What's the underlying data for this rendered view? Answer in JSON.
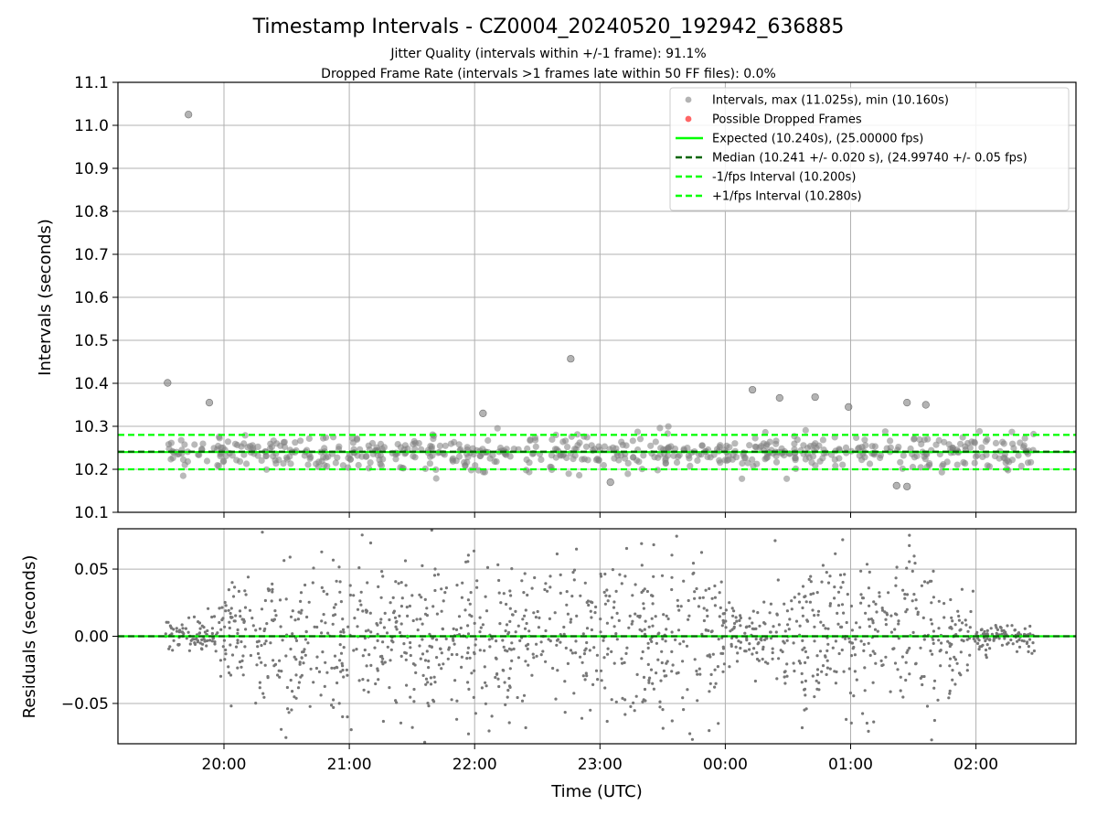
{
  "figure": {
    "title": "Timestamp Intervals - CZ0004_20240520_192942_636885",
    "subtitle_lines": [
      "Jitter Quality (intervals within +/-1 frame): 91.1%",
      "Dropped Frame Rate (intervals >1 frames late within 50 FF files): 0.0%"
    ]
  },
  "colors": {
    "points": "#808080",
    "dropped": "#ff0000",
    "expected": "#00ff00",
    "median": "#006400",
    "interval_bounds": "#00ff00",
    "grid": "#b0b0b0"
  },
  "legend": {
    "placement": "top-right",
    "entries": [
      {
        "label": "Intervals, max (11.025s), min (10.160s)",
        "kind": "marker",
        "color": "#808080"
      },
      {
        "label": "Possible Dropped Frames",
        "kind": "marker",
        "color": "#ff0000"
      },
      {
        "label": "Expected (10.240s), (25.00000 fps)",
        "kind": "solid",
        "color": "#00ff00"
      },
      {
        "label": "Median (10.241 +/- 0.020 s), (24.99740 +/- 0.05 fps)",
        "kind": "dashed",
        "color": "#006400"
      },
      {
        "label": "-1/fps Interval (10.200s)",
        "kind": "dashed",
        "color": "#00ff00"
      },
      {
        "label": "+1/fps Interval (10.280s)",
        "kind": "dashed",
        "color": "#00ff00"
      }
    ]
  },
  "chart_data": [
    {
      "type": "scatter",
      "ylabel": "Intervals (seconds)",
      "xlabel": "",
      "ylim": [
        10.1,
        11.1
      ],
      "yticks": [
        10.1,
        10.2,
        10.3,
        10.4,
        10.5,
        10.6,
        10.7,
        10.8,
        10.9,
        11.0,
        11.1
      ],
      "ytick_labels": [
        "10.1",
        "10.2",
        "10.3",
        "10.4",
        "10.5",
        "10.6",
        "10.7",
        "10.8",
        "10.9",
        "11.0",
        "11.1"
      ],
      "grid": true,
      "x_start_time": "19:30",
      "x_end_time": "02:30",
      "summary": {
        "max": 11.025,
        "min": 10.16,
        "expected": 10.24,
        "median": 10.241,
        "lower": 10.2,
        "upper": 10.28
      },
      "reference_lines": [
        {
          "name": "Expected",
          "y": 10.24,
          "style": "solid"
        },
        {
          "name": "Median",
          "y": 10.241,
          "style": "dashed"
        },
        {
          "name": "-1/fps Interval",
          "y": 10.2,
          "style": "dashed"
        },
        {
          "name": "+1/fps Interval",
          "y": 10.28,
          "style": "dashed"
        }
      ],
      "notable_points": [
        {
          "x": "19:43",
          "y": 11.025
        },
        {
          "x": "19:33",
          "y": 10.401
        },
        {
          "x": "19:53",
          "y": 10.355
        },
        {
          "x": "22:46",
          "y": 10.457
        },
        {
          "x": "00:13",
          "y": 10.385
        },
        {
          "x": "00:26",
          "y": 10.366
        },
        {
          "x": "00:43",
          "y": 10.368
        },
        {
          "x": "00:59",
          "y": 10.345
        },
        {
          "x": "01:27",
          "y": 10.355
        },
        {
          "x": "01:36",
          "y": 10.35
        },
        {
          "x": "22:04",
          "y": 10.33
        },
        {
          "x": "23:05",
          "y": 10.17
        },
        {
          "x": "01:22",
          "y": 10.162
        },
        {
          "x": "01:27",
          "y": 10.16
        }
      ],
      "dense_band": {
        "x_range": [
          "19:30",
          "02:30"
        ],
        "y_range": [
          10.19,
          10.3
        ],
        "center": 10.24,
        "point_count_approx": 2460
      }
    },
    {
      "type": "scatter",
      "ylabel": "Residuals (seconds)",
      "xlabel": "Time (UTC)",
      "ylim": [
        -0.08,
        0.08
      ],
      "yticks": [
        -0.05,
        0.0,
        0.05
      ],
      "ytick_labels": [
        "−0.05",
        "0.00",
        "0.05"
      ],
      "xticks": [
        "20:00",
        "21:00",
        "22:00",
        "23:00",
        "00:00",
        "01:00",
        "02:00"
      ],
      "grid": true,
      "reference_lines": [
        {
          "name": "Median",
          "y": 0.0,
          "style": "dashed"
        },
        {
          "name": "Expected",
          "y": 0.0,
          "style": "solid"
        }
      ],
      "dense_band": {
        "x_range": [
          "19:30",
          "02:30"
        ],
        "y_range": [
          -0.08,
          0.08
        ],
        "center": 0.0
      }
    }
  ]
}
